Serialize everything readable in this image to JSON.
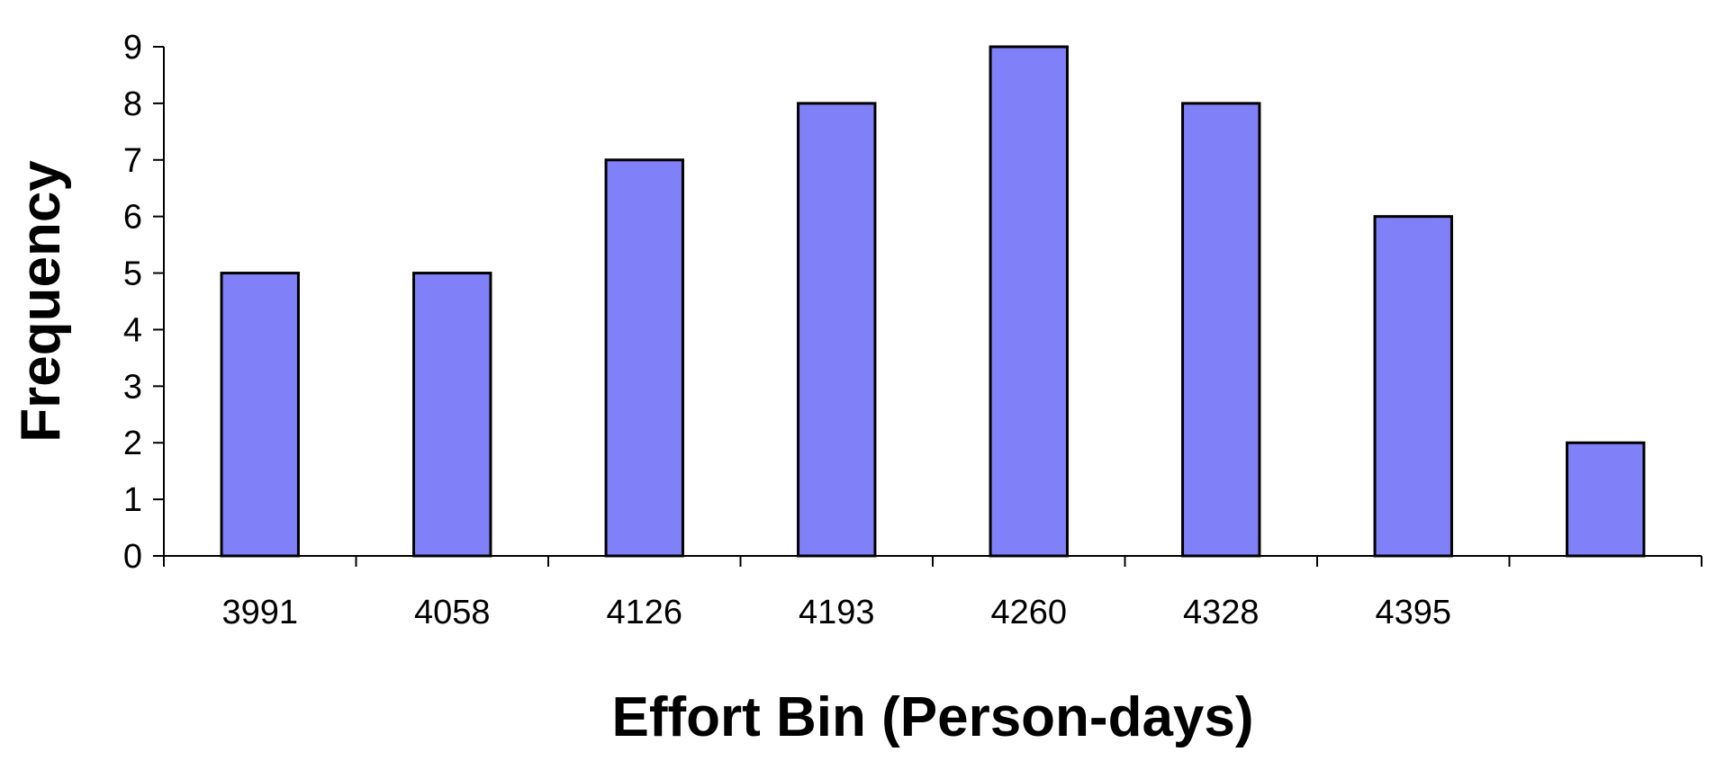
{
  "chart_data": {
    "type": "bar",
    "categories": [
      "3991",
      "4058",
      "4126",
      "4193",
      "4260",
      "4328",
      "4395",
      ""
    ],
    "values": [
      5,
      5,
      7,
      8,
      9,
      8,
      6,
      2
    ],
    "title": "",
    "xlabel": "Effort Bin (Person-days)",
    "ylabel": "Frequency",
    "ylim": [
      0,
      9
    ],
    "yticks": [
      "0",
      "1",
      "2",
      "3",
      "4",
      "5",
      "6",
      "7",
      "8",
      "9"
    ],
    "grid": false,
    "legend": "none",
    "bar_color": "#8080f8",
    "bar_edge_color": "#000000"
  }
}
